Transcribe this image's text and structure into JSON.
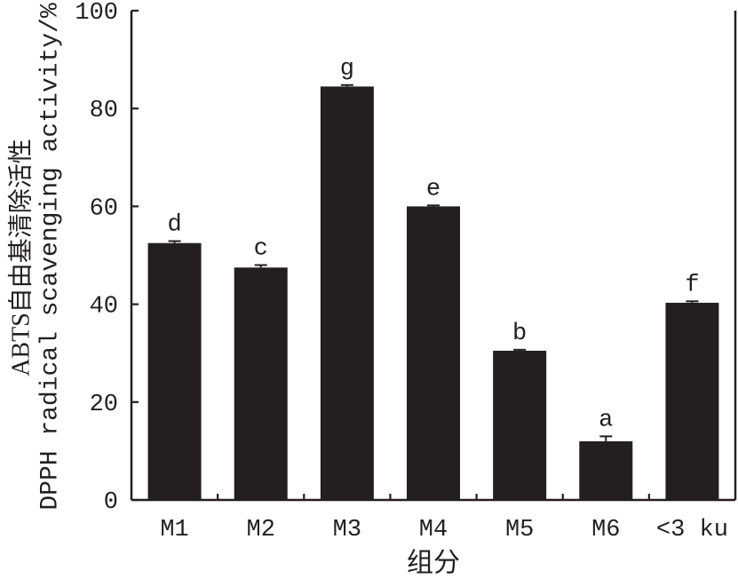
{
  "chart_data": {
    "type": "bar",
    "categories": [
      "M1",
      "M2",
      "M3",
      "M4",
      "M5",
      "M6",
      "<3 ku"
    ],
    "values": [
      52.5,
      47.5,
      84.5,
      60.0,
      30.5,
      12.0,
      40.3
    ],
    "errors": [
      0.4,
      0.5,
      0.3,
      0.2,
      0.2,
      1.0,
      0.3
    ],
    "significance": [
      "d",
      "c",
      "g",
      "e",
      "b",
      "a",
      "f"
    ],
    "xlabel": "组分",
    "ylabel_lines": [
      "ABTS自由基清除活性",
      "DPPH radical scavenging activity/%"
    ],
    "ylim": [
      0,
      100
    ],
    "yticks": [
      0,
      20,
      40,
      60,
      80,
      100
    ],
    "grid": false,
    "bar_color": "#231f20"
  }
}
